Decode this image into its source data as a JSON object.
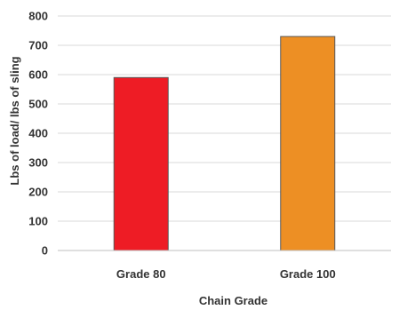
{
  "chart_data": {
    "type": "bar",
    "categories": [
      "Grade 80",
      "Grade 100"
    ],
    "values": [
      590,
      730
    ],
    "colors": [
      "#ee1c25",
      "#ed8f24"
    ],
    "xlabel": "Chain Grade",
    "ylabel": "Lbs of load/ lbs of sling",
    "ylim": [
      0,
      800
    ],
    "yticks": [
      0,
      100,
      200,
      300,
      400,
      500,
      600,
      700,
      800
    ],
    "grid": true,
    "legend": "none"
  }
}
